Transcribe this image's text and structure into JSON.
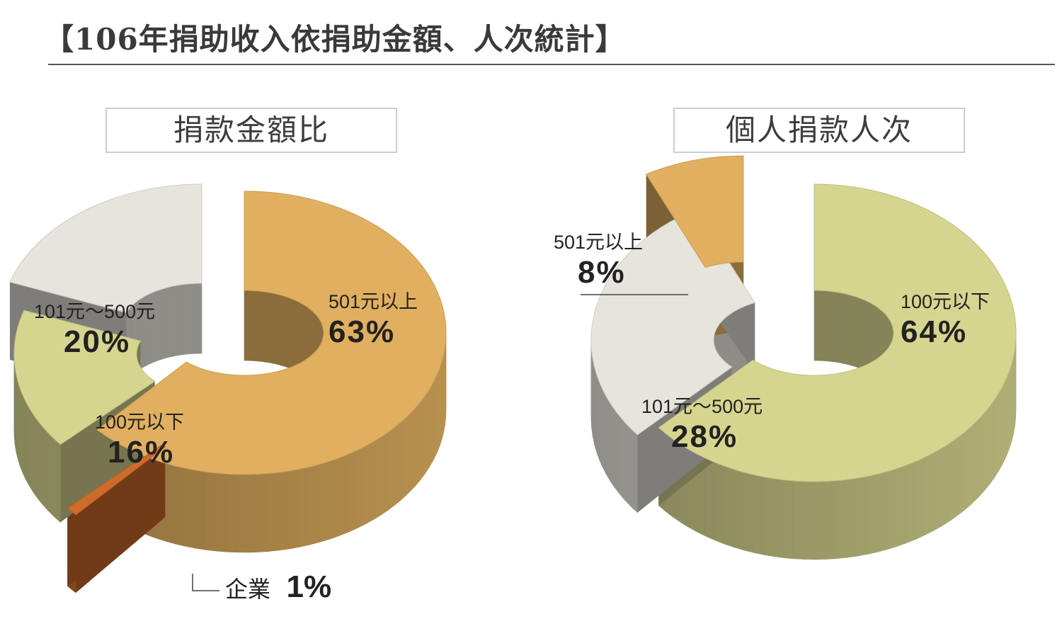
{
  "title": "【106年捐助收入依捐助金額、人次統計】",
  "chart_data": [
    {
      "type": "pie",
      "title": "捐款金額比",
      "categories": [
        "501元以上",
        "企業",
        "100元以下",
        "101元～500元"
      ],
      "values": [
        63,
        1,
        16,
        20
      ],
      "labels": [
        "63%",
        "1%",
        "16%",
        "20%"
      ],
      "colors": [
        "#e0b060",
        "#cf6b2a",
        "#d6d58f",
        "#e6e4dc"
      ],
      "style": "3d-donut"
    },
    {
      "type": "pie",
      "title": "個人捐款人次",
      "categories": [
        "100元以下",
        "101元～500元",
        "501元以上"
      ],
      "values": [
        64,
        28,
        8
      ],
      "labels": [
        "64%",
        "28%",
        "8%"
      ],
      "colors": [
        "#d6d58f",
        "#e6e4dc",
        "#e0b060"
      ],
      "style": "3d-donut"
    }
  ]
}
